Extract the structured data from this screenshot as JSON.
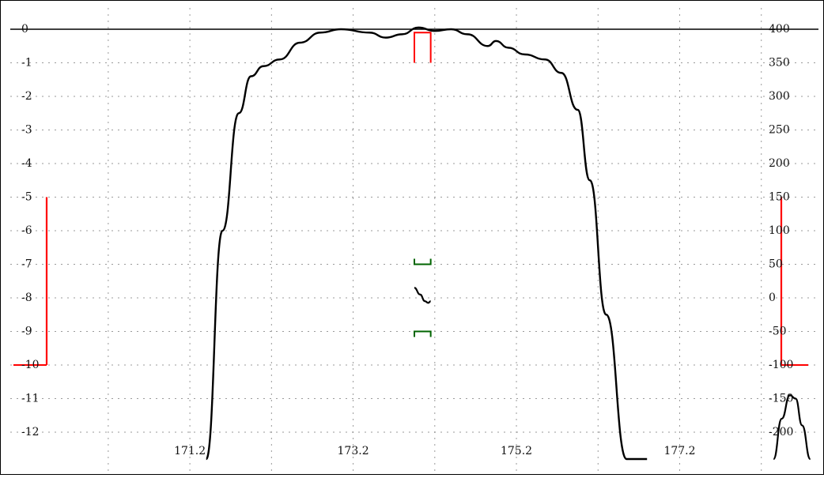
{
  "chart_data": {
    "type": "line",
    "x_ticks": [
      "171.2",
      "173.2",
      "175.2",
      "177.2"
    ],
    "x_tick_values": [
      171.2,
      173.2,
      175.2,
      177.2
    ],
    "xlim": [
      169.0,
      178.9
    ],
    "left_ticks": [
      "0",
      "-1",
      "-2",
      "-3",
      "-4",
      "-5",
      "-6",
      "-7",
      "-8",
      "-9",
      "-10",
      "-11",
      "-12"
    ],
    "left_tick_values": [
      0,
      -1,
      -2,
      -3,
      -4,
      -5,
      -6,
      -7,
      -8,
      -9,
      -10,
      -11,
      -12
    ],
    "left_ylim": [
      -12.8,
      0.2
    ],
    "right_ticks": [
      "400",
      "350",
      "300",
      "250",
      "200",
      "150",
      "100",
      "50",
      "0",
      "-50",
      "-100",
      "-150",
      "-200"
    ],
    "right_tick_values": [
      400,
      350,
      300,
      250,
      200,
      150,
      100,
      50,
      0,
      -50,
      -100,
      -150,
      -200
    ],
    "grid": true,
    "series": [
      {
        "color": "#000000",
        "x": [
          171.4,
          171.6,
          171.8,
          171.95,
          172.1,
          172.3,
          172.55,
          172.8,
          173.05,
          173.4,
          173.6,
          173.8,
          174.0,
          174.2,
          174.4,
          174.6,
          174.85,
          174.95,
          175.1,
          175.3,
          175.55,
          175.75,
          175.95,
          176.1,
          176.3,
          176.55,
          176.8
        ],
        "y": [
          -12.8,
          -6.0,
          -2.5,
          -1.4,
          -1.1,
          -0.9,
          -0.4,
          -0.1,
          0.0,
          -0.1,
          -0.25,
          -0.15,
          0.05,
          -0.05,
          0.0,
          -0.15,
          -0.5,
          -0.35,
          -0.55,
          -0.75,
          -0.9,
          -1.3,
          -2.4,
          -4.5,
          -8.5,
          -12.8,
          -12.8
        ]
      }
    ],
    "mask_upper": {
      "color": "#ff0000",
      "x": [
        173.95,
        174.15
      ],
      "y": [
        -1.0,
        -0.1
      ]
    },
    "mask_lower": {
      "color": "#006400",
      "x": [
        173.95,
        174.15
      ],
      "y": [
        -7.0,
        -9.0
      ]
    },
    "delay_trace": {
      "color": "#000000",
      "x": [
        173.95,
        174.02,
        174.08,
        174.12,
        174.15
      ],
      "y": [
        -7.7,
        -7.9,
        -8.1,
        -8.15,
        -8.1
      ]
    },
    "left_marker": {
      "color": "#ff0000",
      "y": [
        -5,
        -10
      ]
    },
    "right_marker": {
      "color": "#ff0000",
      "y": [
        -5,
        -10
      ]
    },
    "corner_trace": {
      "color": "#000000",
      "x": [
        178.35,
        178.45,
        178.55,
        178.62,
        178.7,
        178.8
      ],
      "y": [
        -12.8,
        -11.6,
        -10.9,
        -11.0,
        -11.8,
        -12.8
      ]
    }
  }
}
